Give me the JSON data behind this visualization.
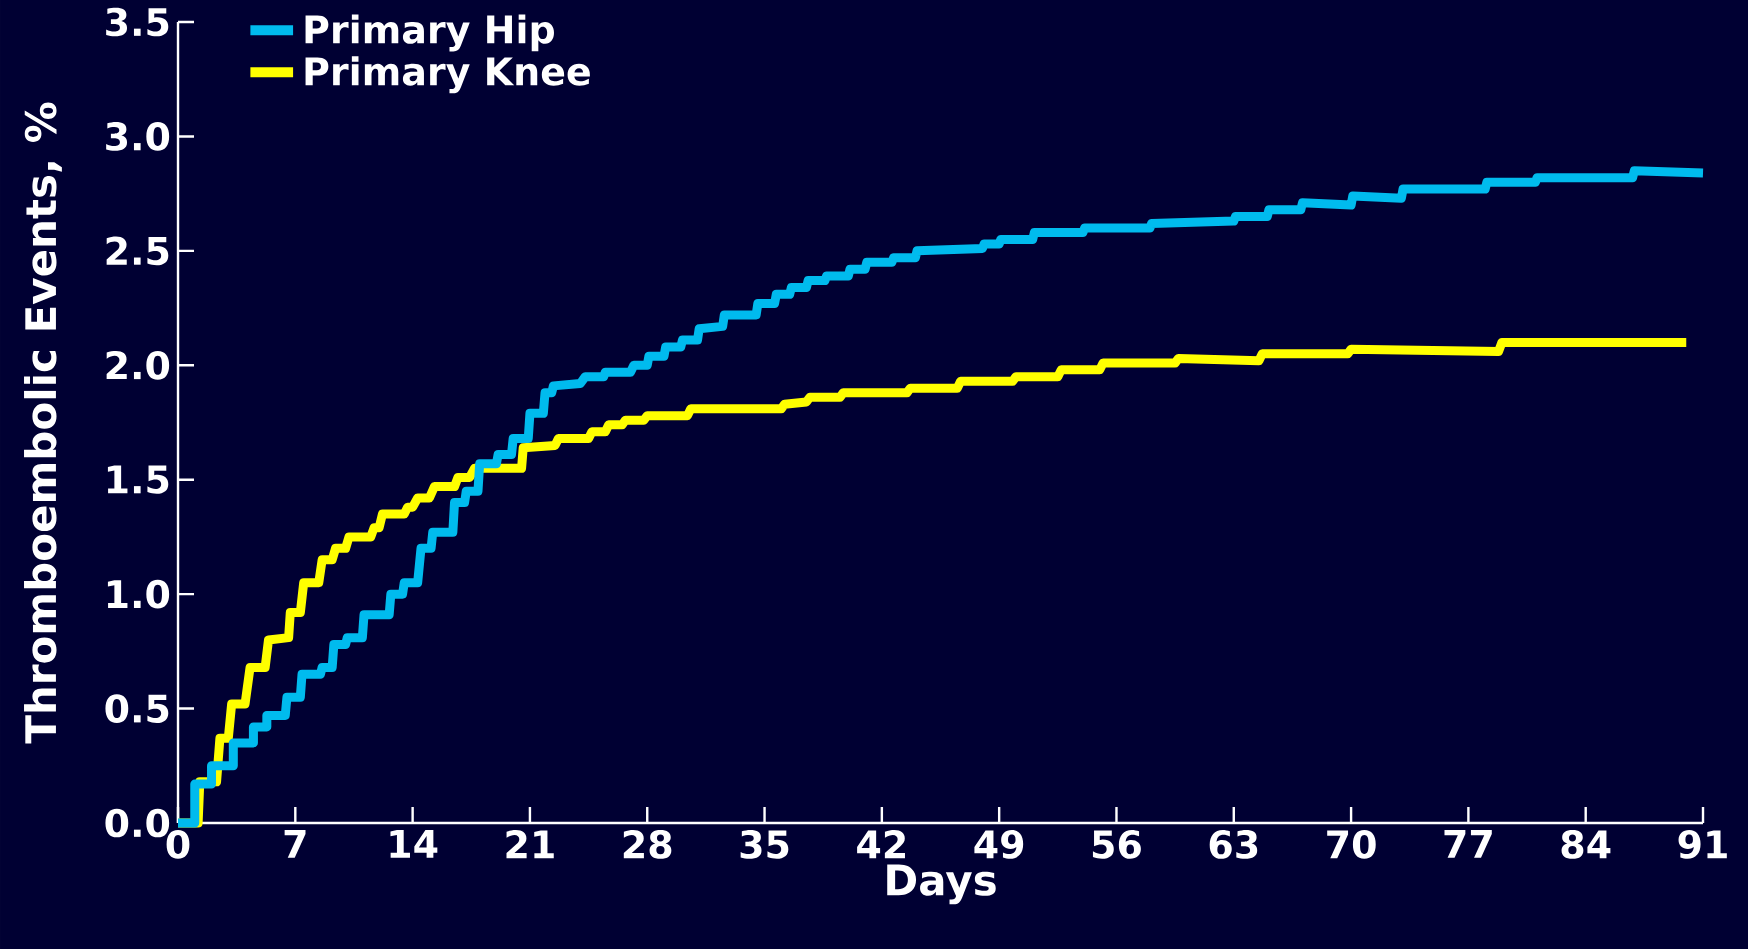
{
  "chart_data": {
    "type": "line",
    "xlabel": "Days",
    "ylabel": "Thromboembolic Events, %",
    "xlim": [
      0,
      91
    ],
    "ylim": [
      0,
      3.5
    ],
    "xticks": [
      0,
      7,
      14,
      21,
      28,
      35,
      42,
      49,
      56,
      63,
      70,
      77,
      84,
      91
    ],
    "yticks": [
      {
        "value": 0,
        "label": "0.0"
      },
      {
        "value": 0.5,
        "label": "0.5"
      },
      {
        "value": 1,
        "label": "1.0"
      },
      {
        "value": 1.5,
        "label": "1.5"
      },
      {
        "value": 2,
        "label": "2.0"
      },
      {
        "value": 2.5,
        "label": "2.5"
      },
      {
        "value": 3,
        "label": "3.0"
      },
      {
        "value": 3.5,
        "label": "3.5"
      }
    ],
    "legend": "top left",
    "grid": false,
    "marker": "none",
    "line_style": "solid",
    "series": [
      {
        "name": "Primary Hip",
        "color": "#00bbee",
        "x": [
          0,
          1,
          1,
          2,
          2,
          3.3,
          3.3,
          4.5,
          4.5,
          5.3,
          5.3,
          6.4,
          6.5,
          7.3,
          7.4,
          8.5,
          8.6,
          9.2,
          9.3,
          10,
          10.1,
          11,
          11.1,
          12.6,
          12.7,
          13.4,
          13.5,
          14.3,
          14.5,
          15.1,
          15.2,
          16.4,
          16.5,
          17.1,
          17.2,
          17.9,
          18,
          19,
          19.1,
          19.9,
          20,
          20.9,
          21,
          21.8,
          21.9,
          22.3,
          22.4,
          24,
          24.3,
          25.4,
          25.5,
          27,
          27.2,
          28,
          28.1,
          29,
          29.1,
          30,
          30.1,
          31,
          31.1,
          32.5,
          32.6,
          34.5,
          34.6,
          35.6,
          35.7,
          36.5,
          36.6,
          37.5,
          37.6,
          38.6,
          38.7,
          40,
          40.1,
          41,
          41.1,
          42.6,
          42.7,
          44,
          44.1,
          48,
          48.1,
          49,
          49.1,
          51,
          51.1,
          54,
          54.1,
          58,
          58.1,
          63,
          63.1,
          65,
          65.1,
          67,
          67.1,
          70,
          70.1,
          73,
          73.1,
          78,
          78.1,
          81,
          81.1,
          86.8,
          86.9,
          91
        ],
        "values": [
          0,
          0,
          0.17,
          0.17,
          0.25,
          0.25,
          0.35,
          0.35,
          0.42,
          0.42,
          0.47,
          0.47,
          0.55,
          0.55,
          0.65,
          0.65,
          0.68,
          0.68,
          0.78,
          0.78,
          0.81,
          0.81,
          0.91,
          0.91,
          1.0,
          1.0,
          1.05,
          1.05,
          1.2,
          1.2,
          1.27,
          1.27,
          1.4,
          1.4,
          1.45,
          1.45,
          1.57,
          1.57,
          1.61,
          1.61,
          1.68,
          1.68,
          1.79,
          1.79,
          1.88,
          1.88,
          1.91,
          1.92,
          1.95,
          1.95,
          1.97,
          1.97,
          2.0,
          2.0,
          2.04,
          2.04,
          2.08,
          2.08,
          2.11,
          2.11,
          2.16,
          2.17,
          2.22,
          2.22,
          2.27,
          2.27,
          2.31,
          2.31,
          2.34,
          2.34,
          2.37,
          2.37,
          2.39,
          2.39,
          2.42,
          2.42,
          2.45,
          2.45,
          2.47,
          2.47,
          2.5,
          2.51,
          2.53,
          2.53,
          2.55,
          2.55,
          2.58,
          2.58,
          2.6,
          2.6,
          2.62,
          2.63,
          2.65,
          2.65,
          2.68,
          2.68,
          2.71,
          2.7,
          2.74,
          2.73,
          2.77,
          2.77,
          2.8,
          2.8,
          2.82,
          2.82,
          2.85,
          2.84
        ]
      },
      {
        "name": "Primary Knee",
        "color": "#ffff00",
        "x": [
          0,
          1.2,
          1.3,
          2.3,
          2.5,
          3,
          3.2,
          4,
          4.3,
          5.2,
          5.4,
          6.6,
          6.7,
          7.3,
          7.5,
          8.4,
          8.6,
          9.2,
          9.4,
          10,
          10.2,
          11.5,
          11.7,
          12,
          12.2,
          13.5,
          13.7,
          14,
          14.3,
          15,
          15.3,
          16.5,
          16.7,
          17.4,
          17.7,
          20.5,
          20.6,
          22.5,
          22.7,
          24.5,
          24.7,
          25.5,
          25.7,
          26.5,
          26.7,
          27.8,
          28,
          30.4,
          30.6,
          36,
          36.2,
          37.5,
          37.7,
          39.5,
          39.7,
          43.5,
          43.7,
          46.5,
          46.7,
          49.8,
          50,
          52.5,
          52.7,
          55,
          55.2,
          59.5,
          59.7,
          64.5,
          64.7,
          69.8,
          70,
          78.8,
          79,
          90
        ],
        "values": [
          0,
          0,
          0.18,
          0.18,
          0.37,
          0.37,
          0.52,
          0.52,
          0.68,
          0.68,
          0.8,
          0.81,
          0.92,
          0.92,
          1.05,
          1.05,
          1.15,
          1.15,
          1.2,
          1.2,
          1.25,
          1.25,
          1.29,
          1.29,
          1.35,
          1.35,
          1.38,
          1.38,
          1.42,
          1.42,
          1.47,
          1.47,
          1.51,
          1.51,
          1.55,
          1.55,
          1.64,
          1.65,
          1.68,
          1.68,
          1.71,
          1.71,
          1.74,
          1.74,
          1.76,
          1.76,
          1.78,
          1.78,
          1.81,
          1.81,
          1.83,
          1.84,
          1.86,
          1.86,
          1.88,
          1.88,
          1.9,
          1.9,
          1.93,
          1.93,
          1.95,
          1.95,
          1.98,
          1.98,
          2.01,
          2.01,
          2.03,
          2.02,
          2.05,
          2.05,
          2.07,
          2.06,
          2.1,
          2.1
        ]
      }
    ]
  }
}
